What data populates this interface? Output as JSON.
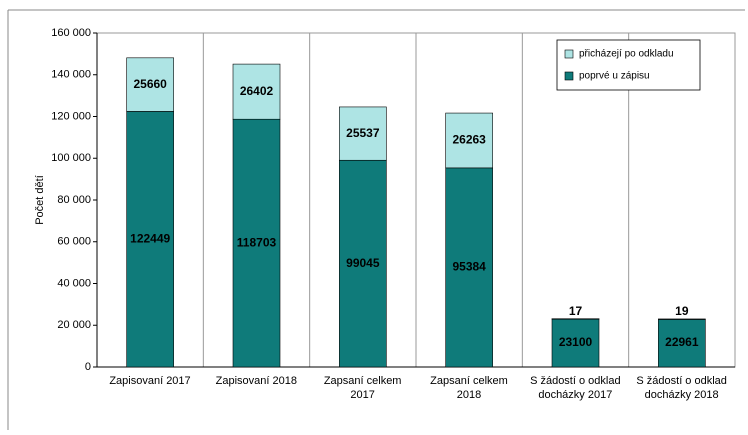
{
  "chart_data": {
    "type": "stacked_bar",
    "y_label": "Počet dětí",
    "categories": [
      "Zapisovaní 2017",
      "Zapisovaní 2018",
      "Zapsaní celkem\n2017",
      "Zapsaní celkem\n2018",
      "S žádostí o odklad\ndocházky 2017",
      "S žádostí o odklad\ndocházky 2018"
    ],
    "series": [
      {
        "name": "poprvé u zápisu",
        "color": "#0f7b7a",
        "values": [
          122449,
          118703,
          99045,
          95384,
          23100,
          22961
        ]
      },
      {
        "name": "přicházejí po odkladu",
        "color": "#aee4e4",
        "values": [
          25660,
          26402,
          25537,
          26263,
          17,
          19
        ]
      }
    ],
    "ylim": [
      0,
      160000
    ],
    "yticks": [
      0,
      {
        "value": 20000,
        "label": "20 000"
      },
      {
        "value": 40000,
        "label": "40 000"
      },
      {
        "value": 60000,
        "label": "60 000"
      },
      {
        "value": 80000,
        "label": "80 000"
      },
      {
        "value": 100000,
        "label": "100 000"
      },
      {
        "value": 120000,
        "label": "120 000"
      },
      {
        "value": 140000,
        "label": "140 000"
      },
      {
        "value": 160000,
        "label": "160 000"
      }
    ],
    "legend": "top-right"
  }
}
